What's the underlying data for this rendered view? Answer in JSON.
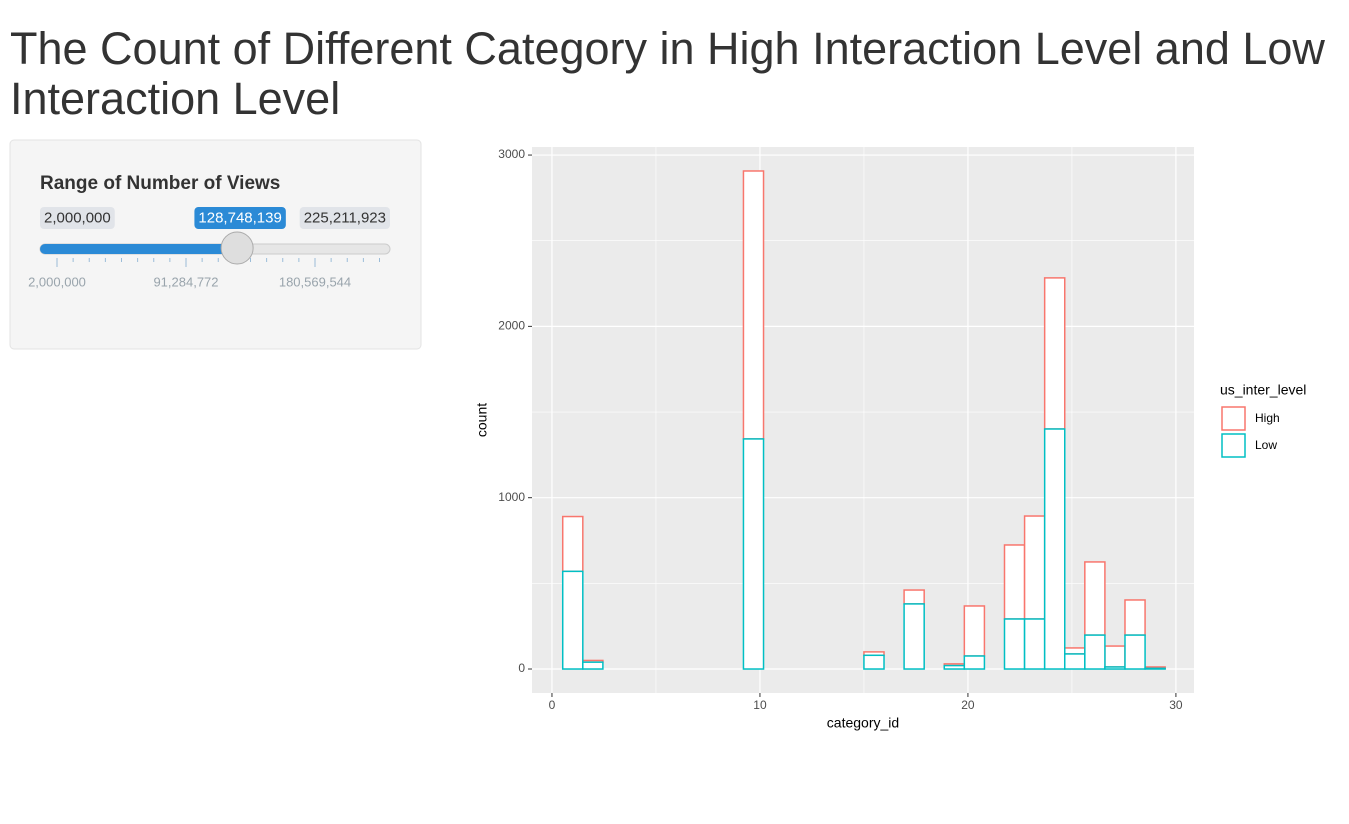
{
  "header": {
    "title": "The Count of Different Category in High Interaction Level and Low Interaction Level"
  },
  "slider": {
    "label": "Range of Number of Views",
    "min": {
      "value": 2000000,
      "label": "2,000,000"
    },
    "max": {
      "value": 225211923,
      "label": "225,211,923"
    },
    "value": {
      "value": 128748139,
      "label": "128,748,139"
    },
    "grid_labels": [
      {
        "value": 2000000,
        "label": "2,000,000"
      },
      {
        "value": 91284772,
        "label": "91,284,772"
      },
      {
        "value": 180569544,
        "label": "180,569,544"
      }
    ]
  },
  "chart_data": {
    "type": "histogram",
    "x_label": "category_id",
    "y_label": "count",
    "legend_title": "us_inter_level",
    "bins": [
      0.5172,
      1.4828,
      2.4483,
      3.4138,
      4.3793,
      5.3448,
      6.3103,
      7.2759,
      8.2414,
      9.2069,
      10.1724,
      11.1379,
      12.1034,
      13.069,
      14.0345,
      15.0,
      15.9655,
      16.931,
      17.8966,
      18.8621,
      19.8276,
      20.7931,
      21.7586,
      22.7241,
      23.6897,
      24.6552,
      25.6207,
      26.5862,
      27.5517,
      28.5172,
      29.4828
    ],
    "series": [
      {
        "name": "High",
        "color": "#F8766D",
        "values": [
          320,
          10,
          0,
          0,
          0,
          0,
          0,
          0,
          0,
          1564,
          0,
          0,
          0,
          0,
          0,
          20,
          0,
          81,
          0,
          10,
          292,
          0,
          432,
          601,
          882,
          35,
          427,
          122,
          205,
          8
        ]
      },
      {
        "name": "Low",
        "color": "#00BFC4",
        "values": [
          570,
          40,
          0,
          0,
          0,
          0,
          0,
          0,
          0,
          1343,
          0,
          0,
          0,
          0,
          0,
          80,
          0,
          380,
          0,
          20,
          76,
          0,
          292,
          292,
          1401,
          88,
          198,
          12,
          198,
          4
        ]
      }
    ],
    "stack_order": [
      "Low",
      "High"
    ],
    "xlim": [
      -0.96,
      30.87
    ],
    "ylim": [
      -140,
      3047
    ],
    "xticks": [
      0,
      10,
      20,
      30
    ],
    "yticks": [
      0,
      1000,
      2000,
      3000
    ],
    "x_minor_grid": [
      5,
      15,
      25
    ],
    "y_minor_grid": [
      500,
      1500,
      2500
    ],
    "grid": true
  }
}
